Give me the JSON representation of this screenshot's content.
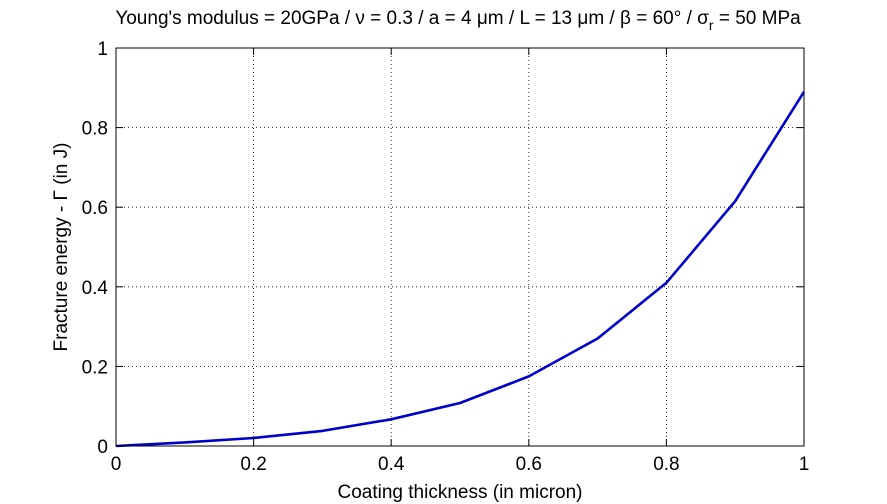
{
  "chart_data": {
    "type": "line",
    "title_parts": {
      "main": "Young's modulus = 20GPa / ν = 0.3 / a = 4 μm / L = 13 μm / β = 60° / σ",
      "subscript": "r",
      "suffix": " = 50 MPa"
    },
    "xlabel": "Coating thickness (in micron)",
    "ylabel": "Fracture energy - Γ (in J)",
    "xlim": [
      0,
      1
    ],
    "ylim": [
      0,
      1
    ],
    "xticks": [
      0,
      0.2,
      0.4,
      0.6,
      0.8,
      1
    ],
    "yticks": [
      0,
      0.2,
      0.4,
      0.6,
      0.8,
      1
    ],
    "xtick_labels": [
      "0",
      "0.2",
      "0.4",
      "0.6",
      "0.8",
      "1"
    ],
    "ytick_labels": [
      "0",
      "0.2",
      "0.4",
      "0.6",
      "0.8",
      "1"
    ],
    "grid": true,
    "series": [
      {
        "color": "#0000cc",
        "x": [
          0,
          0.1,
          0.2,
          0.3,
          0.4,
          0.5,
          0.6,
          0.7,
          0.8,
          0.9,
          1.0
        ],
        "y": [
          0.0,
          0.009,
          0.02,
          0.038,
          0.067,
          0.108,
          0.175,
          0.27,
          0.41,
          0.615,
          0.89
        ]
      }
    ]
  }
}
